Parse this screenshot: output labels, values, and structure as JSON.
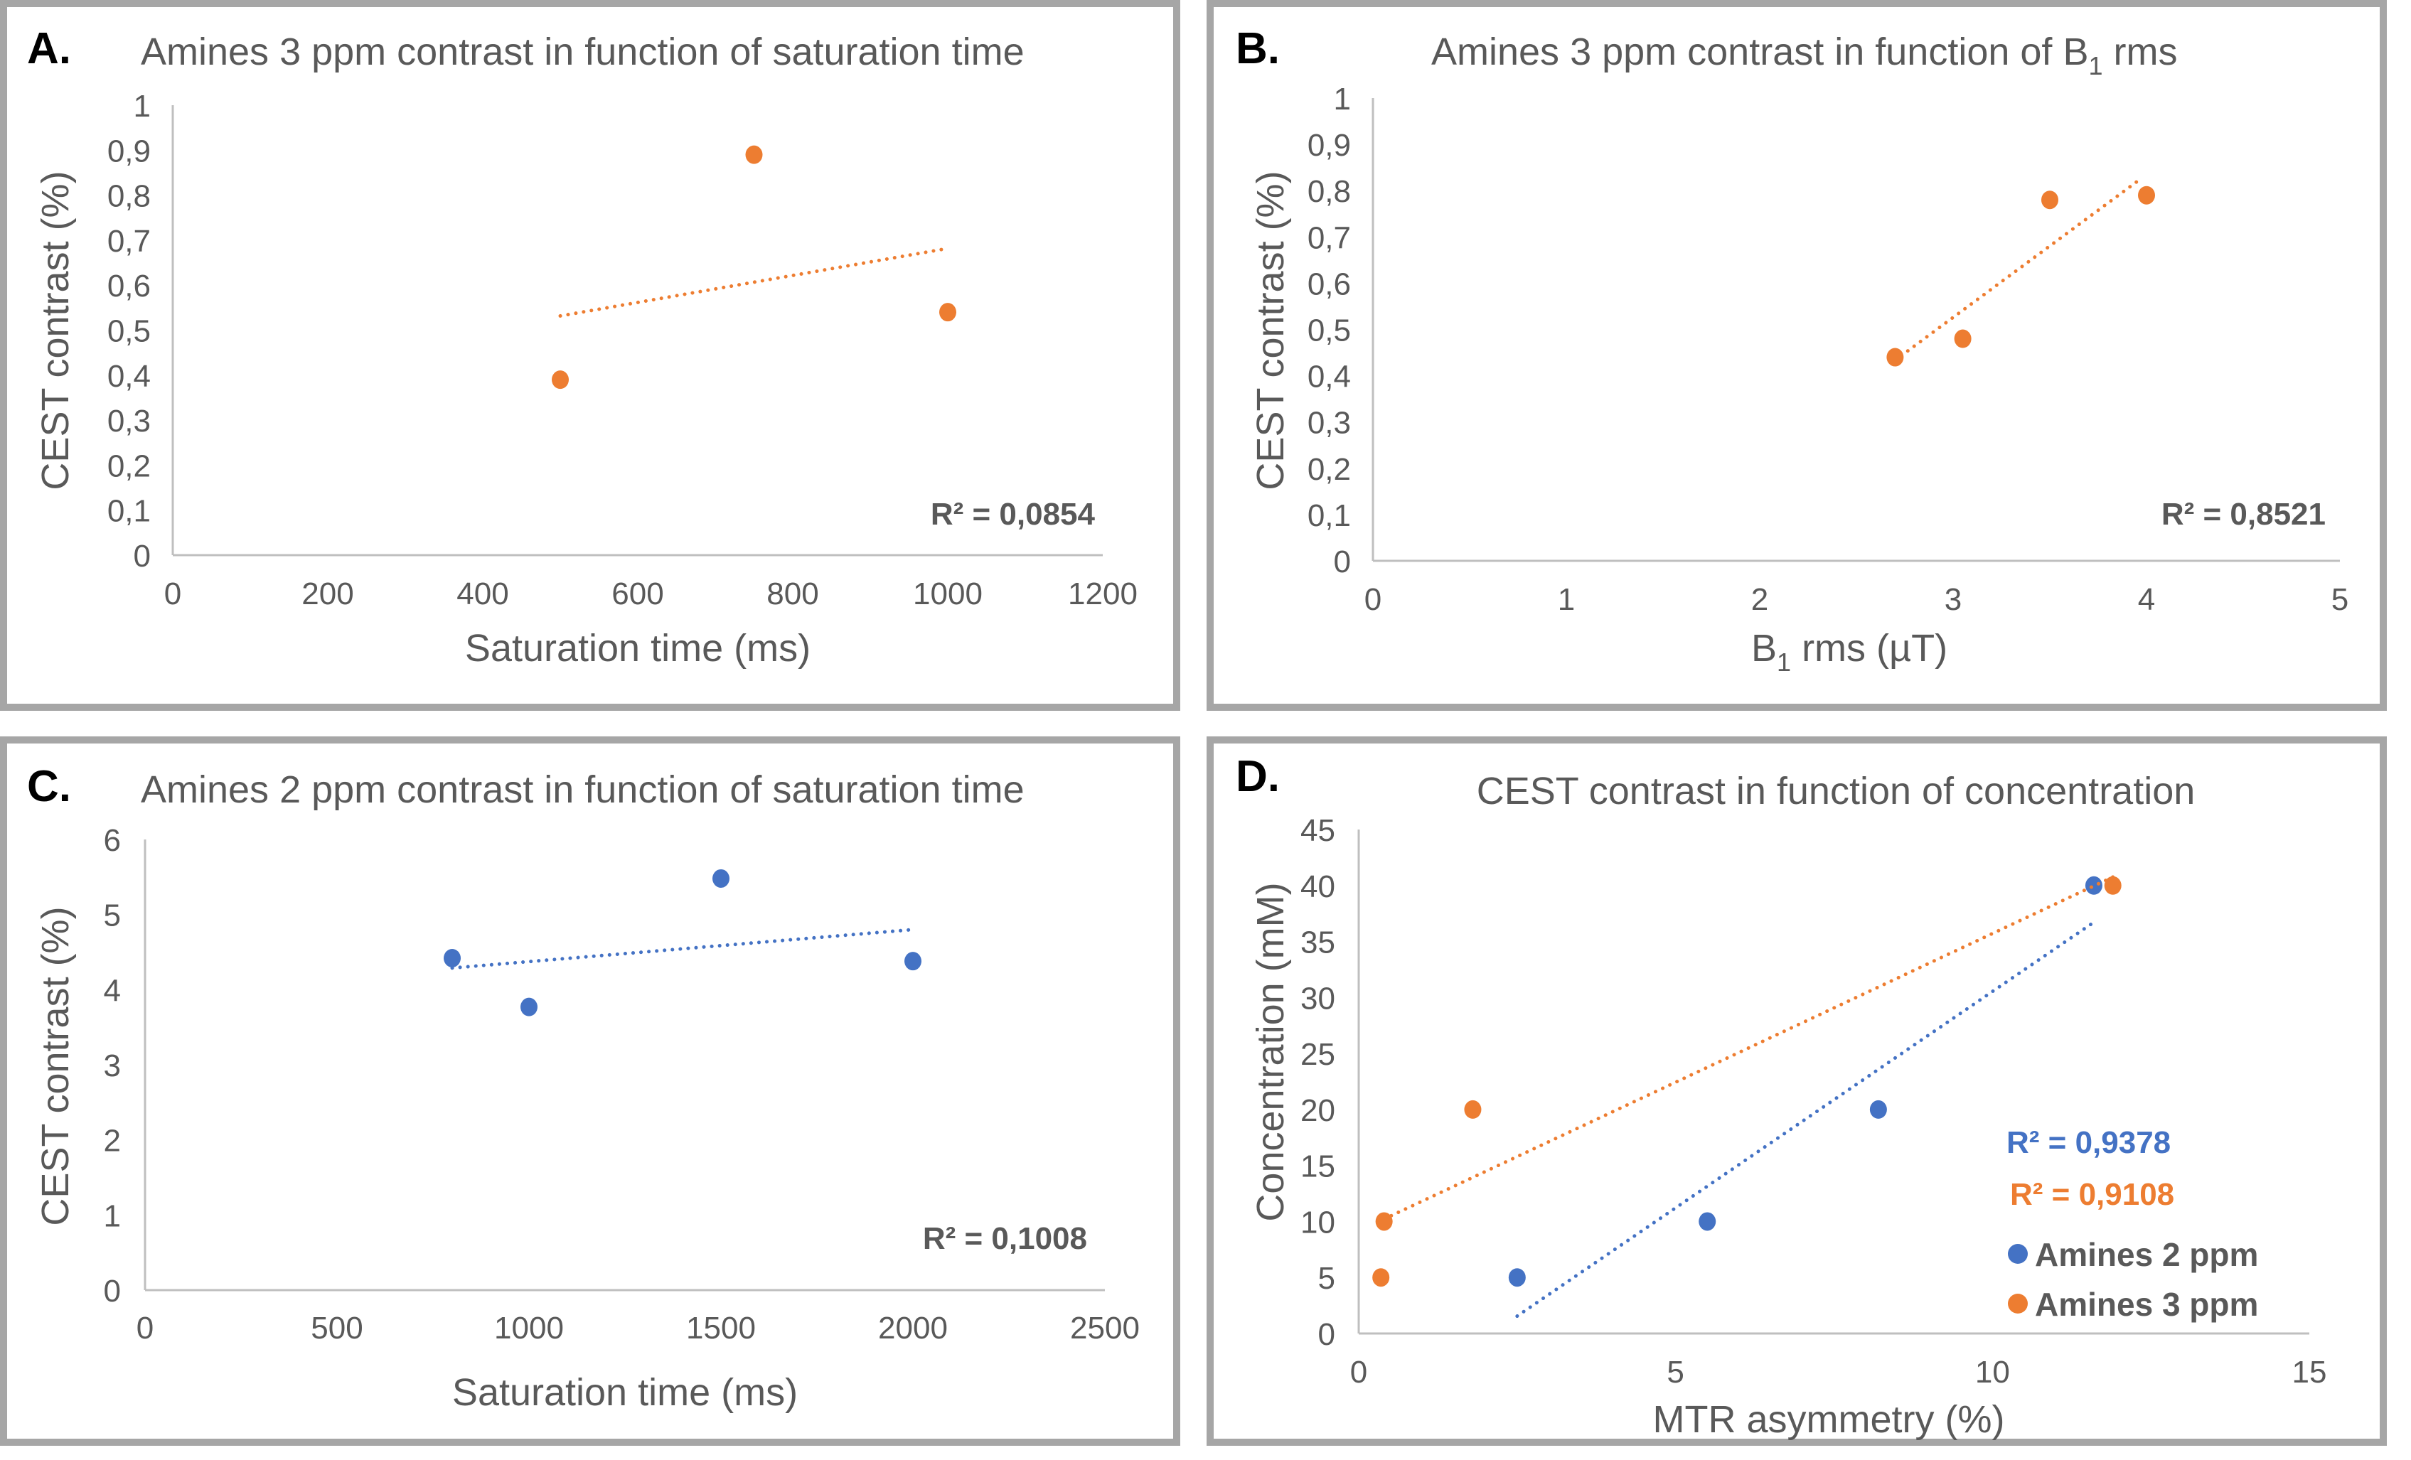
{
  "colors": {
    "orange": "#ED7D31",
    "blue": "#4472C4",
    "text": "#595959",
    "frame": "#a6a6a6",
    "axis": "#bfbfbf"
  },
  "chart_data": [
    {
      "id": "A",
      "panel_letter": "A.",
      "type": "scatter",
      "title": "Amines 3 ppm contrast in function of saturation time",
      "xlabel": "Saturation time (ms)",
      "ylabel": "CEST contrast (%)",
      "xlim": [
        0,
        1200
      ],
      "ylim": [
        0,
        1
      ],
      "xticks": [
        "0",
        "200",
        "400",
        "600",
        "800",
        "1000",
        "1200"
      ],
      "xtick_values": [
        0,
        200,
        400,
        600,
        800,
        1000,
        1200
      ],
      "yticks": [
        "0",
        "0,1",
        "0,2",
        "0,3",
        "0,4",
        "0,5",
        "0,6",
        "0,7",
        "0,8",
        "0,9",
        "1"
      ],
      "ytick_values": [
        0,
        0.1,
        0.2,
        0.3,
        0.4,
        0.5,
        0.6,
        0.7,
        0.8,
        0.9,
        1
      ],
      "grid": false,
      "legend": null,
      "series": [
        {
          "name": "Amines 3 ppm",
          "color": "#ED7D31",
          "points": [
            [
              500,
              0.39
            ],
            [
              750,
              0.89
            ],
            [
              1000,
              0.54
            ]
          ],
          "trendline": {
            "type": "linear",
            "x_range": [
              500,
              1000
            ],
            "r2_label": "R² = 0,0854",
            "r2_color": "#595959"
          }
        }
      ]
    },
    {
      "id": "B",
      "panel_letter": "B.",
      "type": "scatter",
      "title": "Amines 3 ppm contrast in function of B",
      "title_subscript": "1",
      "title_suffix": " rms",
      "xlabel": "B",
      "xlabel_subscript": "1",
      "xlabel_suffix": " rms (µT)",
      "ylabel": "CEST contrast (%)",
      "xlim": [
        0,
        5
      ],
      "ylim": [
        0,
        1
      ],
      "xticks": [
        "0",
        "1",
        "2",
        "3",
        "4",
        "5"
      ],
      "xtick_values": [
        0,
        1,
        2,
        3,
        4,
        5
      ],
      "yticks": [
        "0",
        "0,1",
        "0,2",
        "0,3",
        "0,4",
        "0,5",
        "0,6",
        "0,7",
        "0,8",
        "0,9",
        "1"
      ],
      "ytick_values": [
        0,
        0.1,
        0.2,
        0.3,
        0.4,
        0.5,
        0.6,
        0.7,
        0.8,
        0.9,
        1
      ],
      "grid": false,
      "legend": null,
      "series": [
        {
          "name": "Amines 3 ppm",
          "color": "#ED7D31",
          "points": [
            [
              2.7,
              0.44
            ],
            [
              3.05,
              0.48
            ],
            [
              3.5,
              0.78
            ],
            [
              4.0,
              0.79
            ]
          ],
          "trendline": {
            "type": "linear",
            "x_range": [
              2.7,
              3.97
            ],
            "r2_label": "R² = 0,8521",
            "r2_color": "#595959"
          }
        }
      ]
    },
    {
      "id": "C",
      "panel_letter": "C.",
      "type": "scatter",
      "title": "Amines 2 ppm contrast in function of saturation time",
      "xlabel": "Saturation time (ms)",
      "ylabel": "CEST contrast (%)",
      "xlim": [
        0,
        2500
      ],
      "ylim": [
        0,
        6
      ],
      "xticks": [
        "0",
        "500",
        "1000",
        "1500",
        "2000",
        "2500"
      ],
      "xtick_values": [
        0,
        500,
        1000,
        1500,
        2000,
        2500
      ],
      "yticks": [
        "0",
        "1",
        "2",
        "3",
        "4",
        "5",
        "6"
      ],
      "ytick_values": [
        0,
        1,
        2,
        3,
        4,
        5,
        6
      ],
      "grid": false,
      "legend": null,
      "series": [
        {
          "name": "Amines 2 ppm",
          "color": "#4472C4",
          "points": [
            [
              800,
              4.42
            ],
            [
              1000,
              3.77
            ],
            [
              1500,
              5.48
            ],
            [
              2000,
              4.38
            ]
          ],
          "trendline": {
            "type": "linear",
            "x_range": [
              800,
              2000
            ],
            "r2_label": "R² = 0,1008",
            "r2_color": "#595959"
          }
        }
      ]
    },
    {
      "id": "D",
      "panel_letter": "D.",
      "type": "scatter",
      "title": "CEST contrast in function of concentration",
      "xlabel": "MTR asymmetry (%)",
      "ylabel": "Concentration (mM)",
      "xlim": [
        0,
        15
      ],
      "ylim": [
        0,
        45
      ],
      "xticks": [
        "0",
        "5",
        "10",
        "15"
      ],
      "xtick_values": [
        0,
        5,
        10,
        15
      ],
      "yticks": [
        "0",
        "5",
        "10",
        "15",
        "20",
        "25",
        "30",
        "35",
        "40",
        "45"
      ],
      "ytick_values": [
        0,
        5,
        10,
        15,
        20,
        25,
        30,
        35,
        40,
        45
      ],
      "grid": false,
      "legend": "bottom-right",
      "series": [
        {
          "name": "Amines 2 ppm",
          "color": "#4472C4",
          "points": [
            [
              2.5,
              5
            ],
            [
              5.5,
              10
            ],
            [
              8.2,
              20
            ],
            [
              11.6,
              40
            ]
          ],
          "trendline": {
            "type": "linear",
            "x_range": [
              2.5,
              11.6
            ],
            "r2_label": "R² = 0,9378",
            "r2_color": "#4472C4"
          }
        },
        {
          "name": "Amines 3 ppm",
          "color": "#ED7D31",
          "points": [
            [
              0.35,
              5
            ],
            [
              0.4,
              10
            ],
            [
              1.8,
              20
            ],
            [
              11.9,
              40
            ]
          ],
          "trendline": {
            "type": "linear",
            "x_range": [
              0.4,
              11.9
            ],
            "r2_label": "R² = 0,9108",
            "r2_color": "#ED7D31"
          }
        }
      ]
    }
  ]
}
